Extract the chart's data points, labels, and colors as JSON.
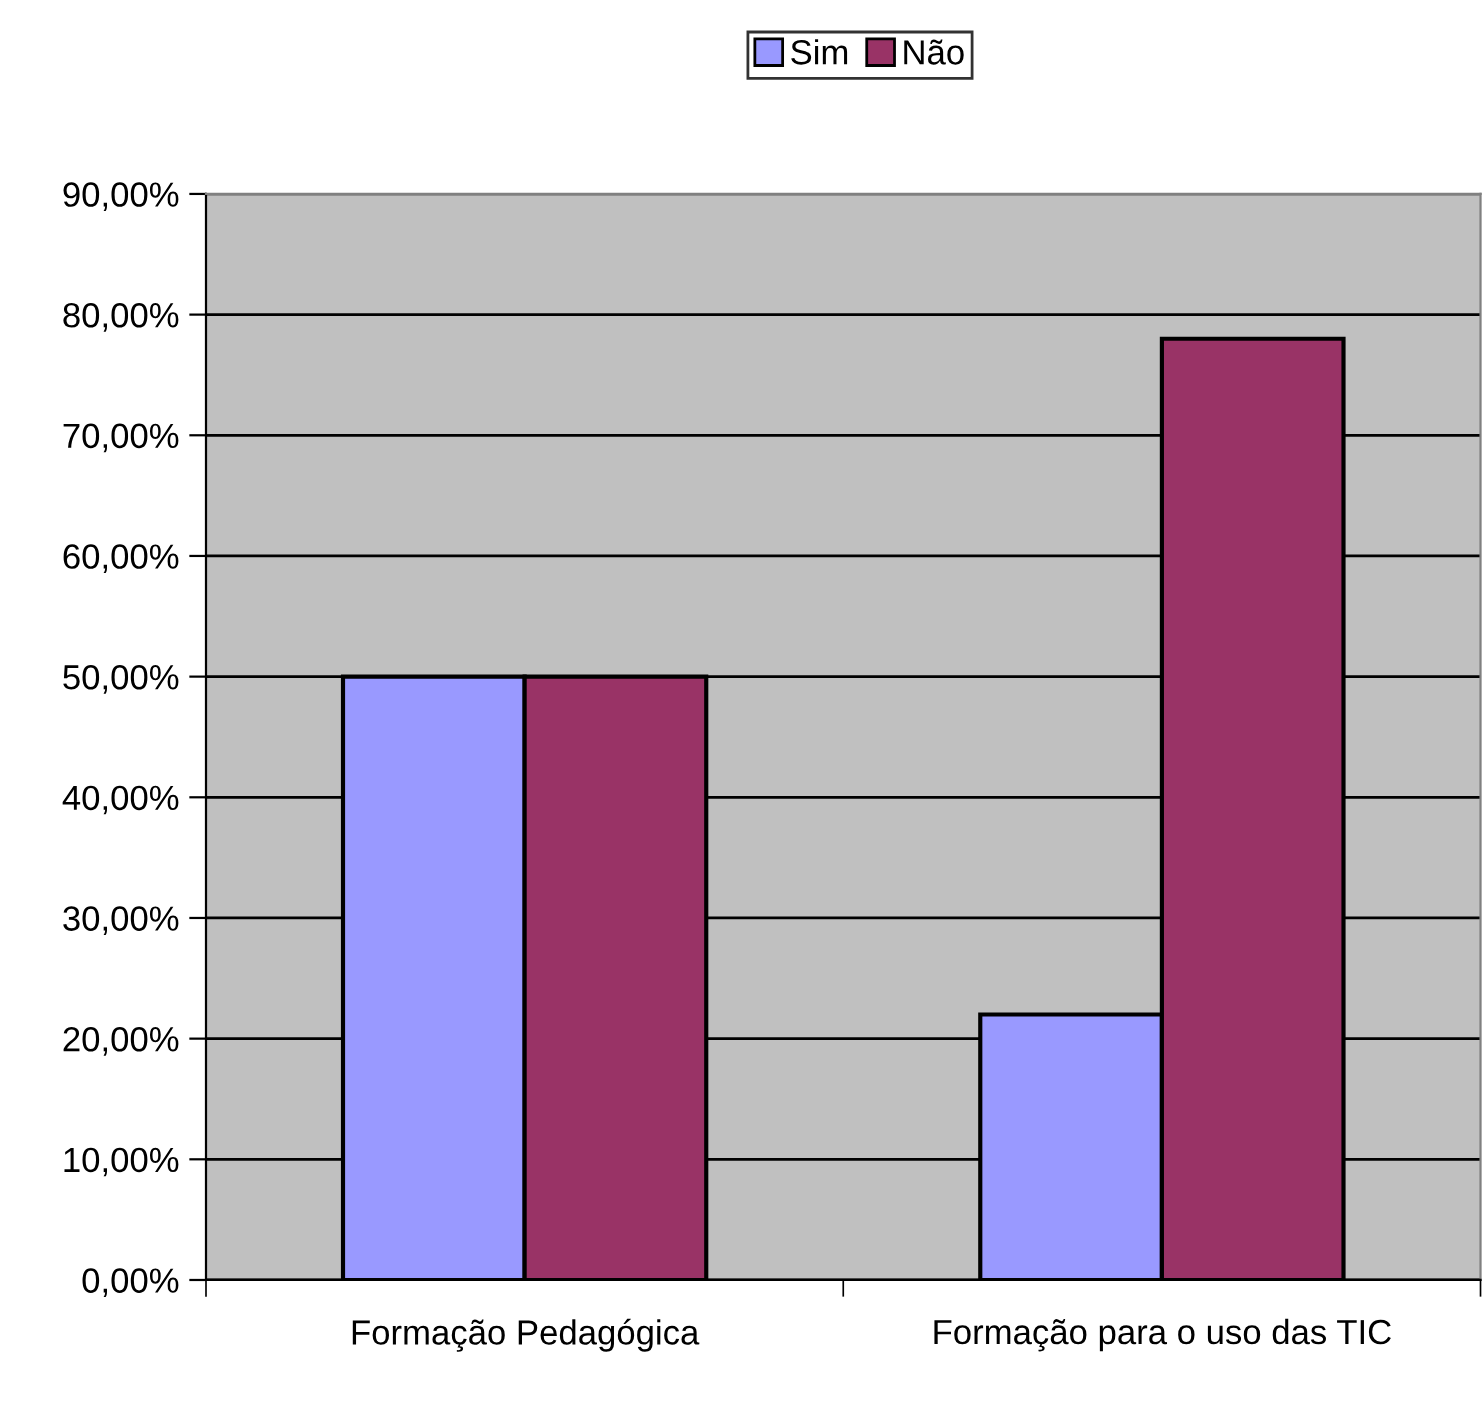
{
  "chart_data": {
    "type": "bar",
    "categories": [
      "Formação Pedagógica",
      "Formação para o uso das TIC"
    ],
    "series": [
      {
        "name": "Sim",
        "color": "#9999ff",
        "values": [
          50,
          22
        ]
      },
      {
        "name": "Não",
        "color": "#993366",
        "values": [
          50,
          78
        ]
      }
    ],
    "ylim": [
      0,
      90
    ],
    "yticks": [
      {
        "value": 0,
        "label": "0,00%"
      },
      {
        "value": 10,
        "label": "10,00%"
      },
      {
        "value": 20,
        "label": "20,00%"
      },
      {
        "value": 30,
        "label": "30,00%"
      },
      {
        "value": 40,
        "label": "40,00%"
      },
      {
        "value": 50,
        "label": "50,00%"
      },
      {
        "value": 60,
        "label": "60,00%"
      },
      {
        "value": 70,
        "label": "70,00%"
      },
      {
        "value": 80,
        "label": "80,00%"
      },
      {
        "value": 90,
        "label": "90,00%"
      }
    ],
    "grid": "y",
    "legend": "top"
  }
}
